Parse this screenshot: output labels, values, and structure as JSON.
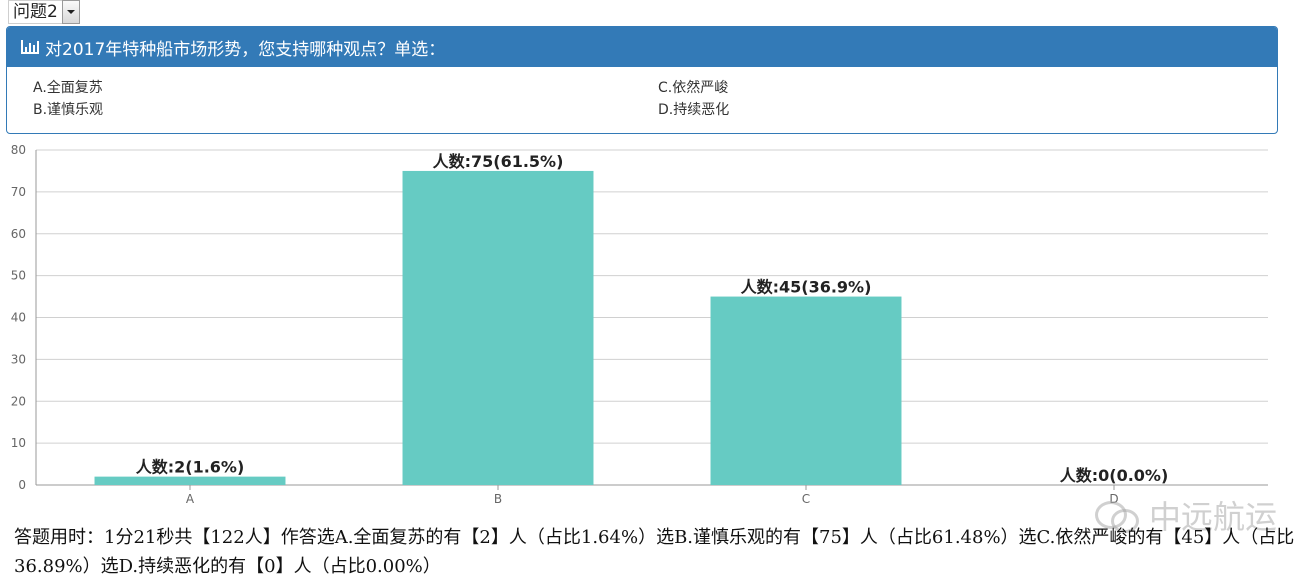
{
  "question_selector": {
    "value": "问题2"
  },
  "question": {
    "title": "对2017年特种船市场形势，您支持哪种观点？单选：",
    "options": {
      "a": "A.全面复苏",
      "b": "B.谨慎乐观",
      "c": "C.依然严峻",
      "d": "D.持续恶化"
    }
  },
  "chart_data": {
    "type": "bar",
    "categories": [
      "A",
      "B",
      "C",
      "D"
    ],
    "values": [
      2,
      75,
      45,
      0
    ],
    "data_labels": [
      "人数:2(1.6%)",
      "人数:75(61.5%)",
      "人数:45(36.9%)",
      "人数:0(0.0%)"
    ],
    "yticks": [
      0,
      10,
      20,
      30,
      40,
      50,
      60,
      70,
      80
    ],
    "ylim": [
      0,
      80
    ],
    "grid": true,
    "bar_color": "#66cbc3"
  },
  "summary": "答题用时：1分21秒共【122人】作答选A.全面复苏的有【2】人（占比1.64%）选B.谨慎乐观的有【75】人（占比61.48%）选C.依然严峻的有【45】人（占比36.89%）选D.持续恶化的有【0】人（占比0.00%）",
  "watermark": "中远航运"
}
